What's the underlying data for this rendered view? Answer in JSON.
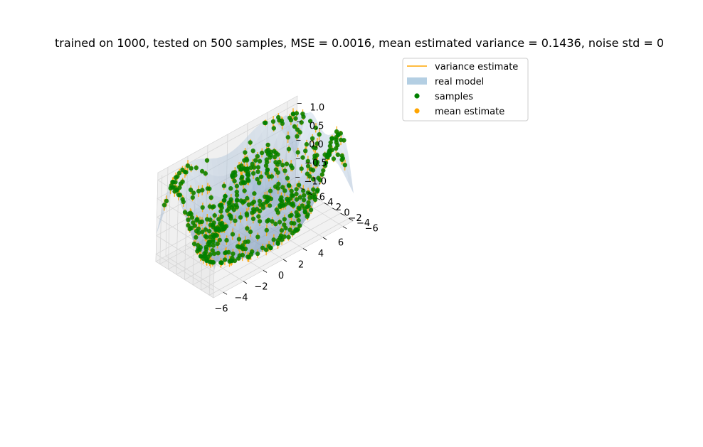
{
  "chart_data": {
    "type": "scatter3d",
    "title": "trained on 1000, tested on 500 samples, MSE = 0.0016, mean estimated variance = 0.1436, noise std = 0",
    "xlabel": "",
    "ylabel": "",
    "zlabel": "",
    "xlim": [
      -7,
      7
    ],
    "ylim": [
      -7,
      7
    ],
    "zlim": [
      -1.2,
      1.2
    ],
    "x_ticks": [
      -6,
      -4,
      -2,
      0,
      2,
      4,
      6
    ],
    "y_ticks": [
      -6,
      -4,
      -2,
      0,
      2,
      4,
      6
    ],
    "z_ticks": [
      -1.0,
      -0.5,
      0.0,
      0.5,
      1.0
    ],
    "x_tick_labels": [
      "−6",
      "−4",
      "−2",
      "0",
      "2",
      "4",
      "6"
    ],
    "y_tick_labels": [
      "−6",
      "−4",
      "−2",
      "0",
      "2",
      "4",
      "6"
    ],
    "z_tick_labels": [
      "−1.0",
      "−0.5",
      "0.0",
      "0.5",
      "1.0"
    ],
    "surface": "sin(sqrt(x^2 + y^2))",
    "grid": true,
    "legend_position": "top-right",
    "legend": [
      {
        "label": "variance estimate",
        "kind": "line",
        "color": "#ffa500"
      },
      {
        "label": "real model",
        "kind": "patch",
        "color": "#b4cfe3"
      },
      {
        "label": "samples",
        "kind": "marker",
        "color": "#008000"
      },
      {
        "label": "mean estimate",
        "kind": "marker",
        "color": "#ffa500"
      }
    ],
    "series": [
      {
        "name": "samples",
        "color": "#008000",
        "n": 500
      },
      {
        "name": "mean estimate",
        "color": "#ffa500",
        "n": 500
      },
      {
        "name": "variance estimate",
        "color": "#ffa500"
      },
      {
        "name": "real model",
        "color": "#b4cfe3"
      }
    ]
  }
}
